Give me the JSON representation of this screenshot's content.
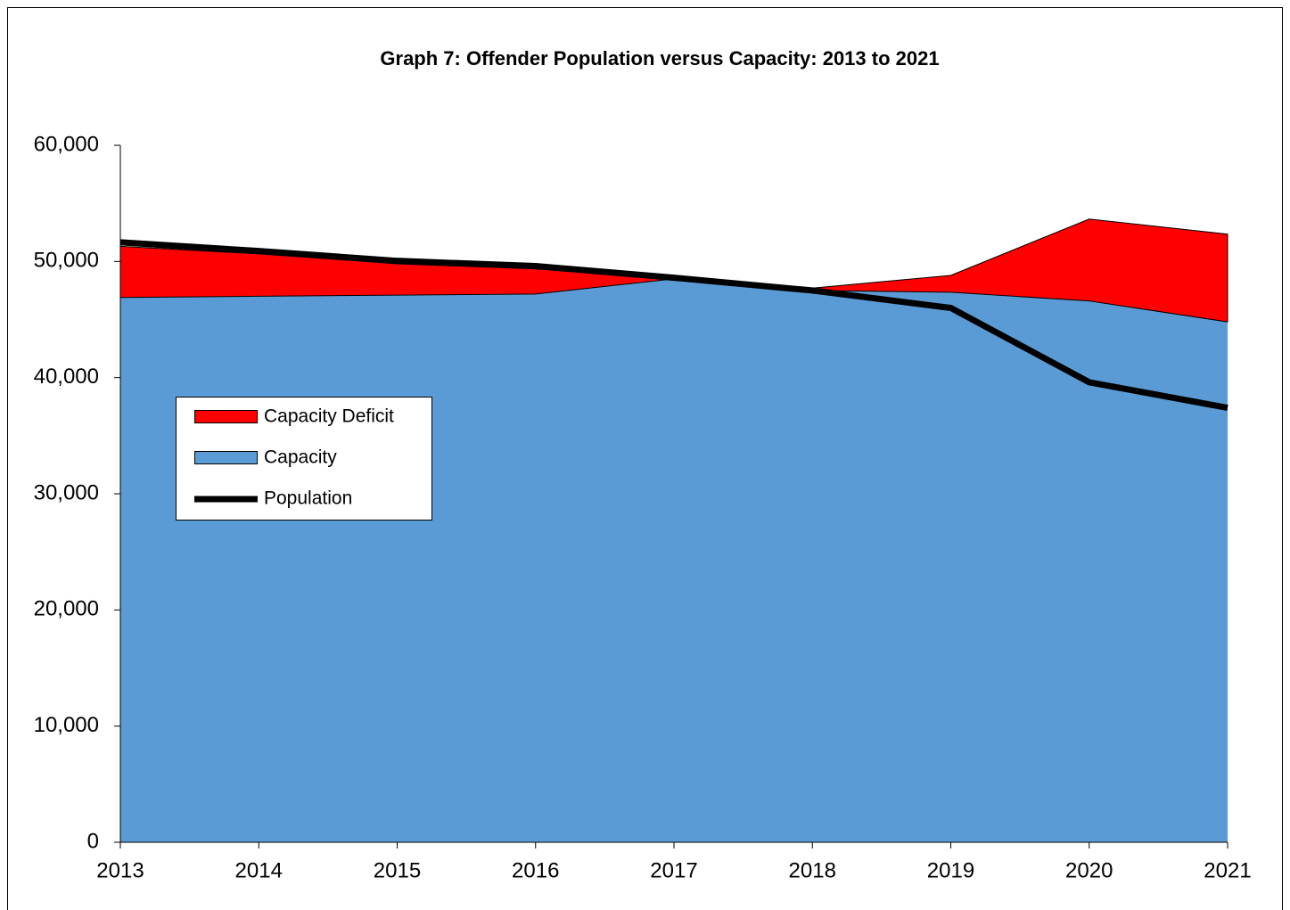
{
  "chart_data": {
    "type": "area",
    "title": "Graph 7:  Offender Population versus Capacity: 2013 to 2021",
    "categories": [
      "2013",
      "2014",
      "2015",
      "2016",
      "2017",
      "2018",
      "2019",
      "2020",
      "2021"
    ],
    "series": [
      {
        "name": "Capacity Deficit",
        "type": "area",
        "stack_on": "Capacity",
        "color": "#ff0000",
        "values": [
          4400,
          3650,
          2700,
          2150,
          0,
          200,
          1450,
          7050,
          7550
        ]
      },
      {
        "name": "Capacity",
        "type": "area",
        "color": "#5b9bd5",
        "values": [
          46900,
          47000,
          47100,
          47200,
          48500,
          47500,
          47350,
          46600,
          44800
        ]
      },
      {
        "name": "Population",
        "type": "line",
        "color": "#000000",
        "values": [
          51650,
          50900,
          50050,
          49600,
          48600,
          47500,
          46000,
          39600,
          37400
        ]
      }
    ],
    "ylim": [
      0,
      60000
    ],
    "yticks": [
      0,
      {
        "value": 10000,
        "label": "10,000"
      },
      {
        "value": 20000,
        "label": "20,000"
      },
      {
        "value": 30000,
        "label": "30,000"
      },
      {
        "value": 40000,
        "label": "40,000"
      },
      {
        "value": 50000,
        "label": "50,000"
      },
      {
        "value": 60000,
        "label": "60,000"
      }
    ],
    "grid": false,
    "legend": "left"
  }
}
